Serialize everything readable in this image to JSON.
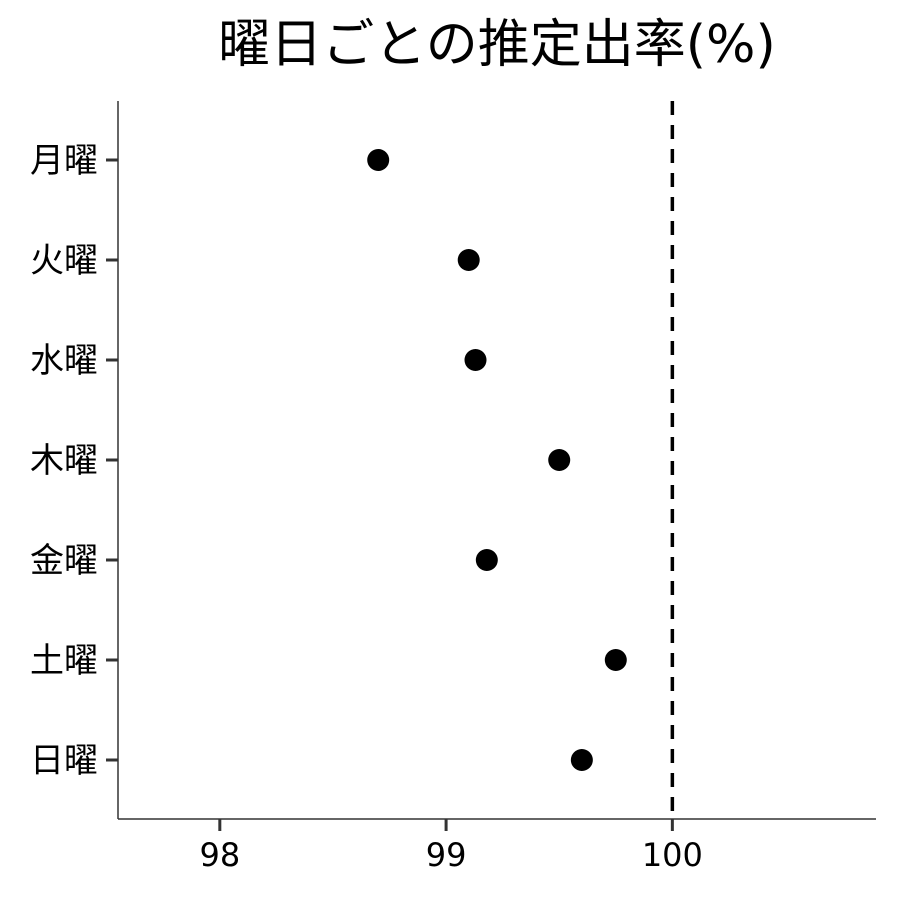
{
  "chart_data": {
    "type": "scatter",
    "title": "曜日ごとの推定出率(%)",
    "xlabel": "",
    "ylabel": "",
    "categories": [
      "月曜",
      "火曜",
      "水曜",
      "木曜",
      "金曜",
      "土曜",
      "日曜"
    ],
    "series": [
      {
        "values": [
          98.7,
          99.1,
          99.13,
          99.5,
          99.18,
          99.75,
          99.6
        ]
      }
    ],
    "xlim": [
      97.55,
      100.9
    ],
    "xticks": [
      98,
      99,
      100
    ],
    "xtick_labels": [
      "98",
      "99",
      "100"
    ],
    "reference_line": {
      "x": 100,
      "style": "dashed"
    },
    "grid": false,
    "point_color": "#000000"
  }
}
